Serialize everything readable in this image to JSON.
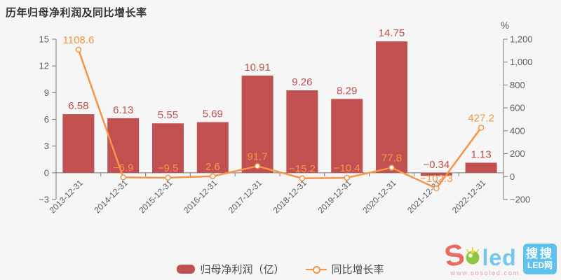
{
  "title": "历年归母净利润及同比增长率",
  "colors": {
    "background": "#f6f6f6",
    "bar": "#c05150",
    "line": "#f79447",
    "axis_line": "#7a7a7a",
    "axis_text": "#5e5e5e",
    "title_text": "#333333",
    "legend_text": "#4a4a4a"
  },
  "chart_data": {
    "type": "bar",
    "subtype": "bar+line dual-axis combo",
    "title": "历年归母净利润及同比增长率",
    "categories": [
      "2013-12-31",
      "2014-12-31",
      "2015-12-31",
      "2016-12-31",
      "2017-12-31",
      "2018-12-31",
      "2019-12-31",
      "2020-12-31",
      "2021-12-31",
      "2022-12-31"
    ],
    "series": [
      {
        "name": "归母净利润（亿）",
        "type": "bar",
        "axis": "left",
        "color": "#c05150",
        "values": [
          6.58,
          6.13,
          5.55,
          5.69,
          10.91,
          9.26,
          8.29,
          14.75,
          -0.34,
          1.13
        ],
        "labels": [
          "6.58",
          "6.13",
          "5.55",
          "5.69",
          "10.91",
          "9.26",
          "8.29",
          "14.75",
          "−0.34",
          "1.13"
        ]
      },
      {
        "name": "同比增长率",
        "type": "line",
        "axis": "right",
        "color": "#f79447",
        "values": [
          1108.6,
          -6.9,
          -9.5,
          2.6,
          91.7,
          -15.2,
          -10.4,
          77.8,
          -102.3,
          427.2
        ],
        "labels": [
          "1108.6",
          "−6.9",
          "−9.5",
          "2.6",
          "91.7",
          "−15.2",
          "−10.4",
          "77.8",
          "−102.3",
          "427.2"
        ]
      }
    ],
    "left_axis": {
      "min": -3,
      "max": 15,
      "step": 3,
      "tick_labels": [
        "−3",
        "0",
        "3",
        "6",
        "9",
        "12",
        "15"
      ]
    },
    "right_axis": {
      "min": -200,
      "max": 1200,
      "step": 200,
      "unit": "%",
      "tick_labels": [
        "−200",
        "0",
        "200",
        "400",
        "600",
        "800",
        "1,000",
        "1,200"
      ]
    },
    "grid": false,
    "legend_position": "bottom"
  },
  "legend": {
    "bar_label": "归母净利润（亿）",
    "line_label": "同比增长率"
  },
  "logo": {
    "s": "S",
    "led": "led",
    "url": "www.sosoled.com",
    "badge_line1": "搜搜",
    "badge_line2": "LED网"
  }
}
